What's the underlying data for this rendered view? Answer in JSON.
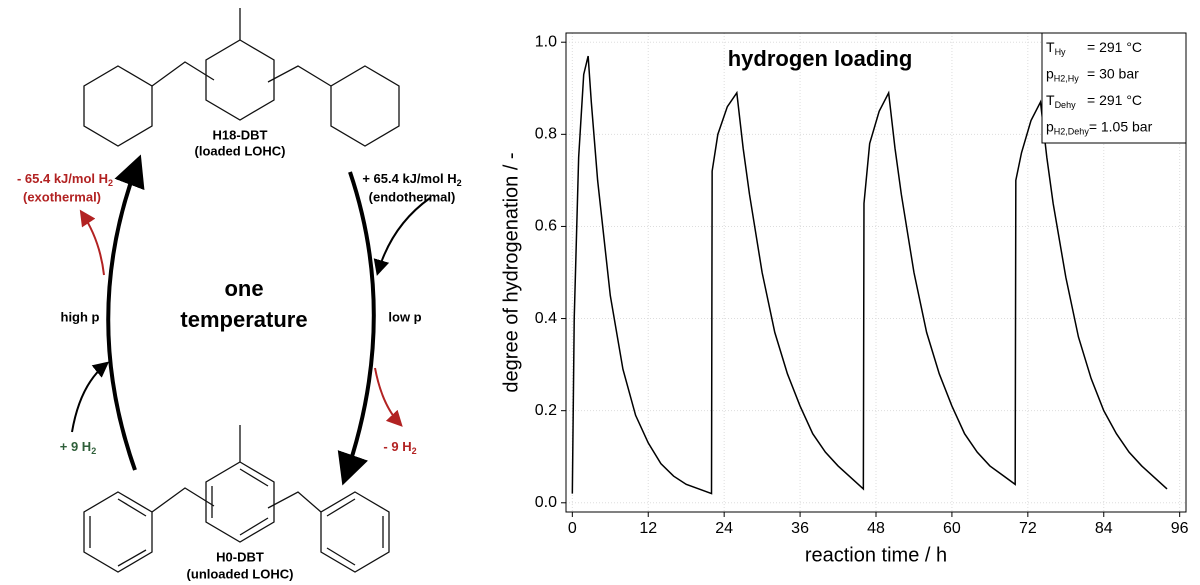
{
  "diagram": {
    "loaded": {
      "name": "H18-DBT",
      "note": "(loaded LOHC)"
    },
    "unloaded": {
      "name": "H0-DBT",
      "note": "(unloaded LOHC)"
    },
    "center": [
      "one",
      "temperature"
    ],
    "left_condition": "high p",
    "right_condition": "low p",
    "exothermic": {
      "main": "- 65.4 kJ/mol H",
      "sub": "2",
      "note": "(exothermal)"
    },
    "endothermic": {
      "main": "+ 65.4 kJ/mol H",
      "sub": "2",
      "note": "(endothermal)"
    },
    "h2_in": {
      "main": "+ 9 H",
      "sub": "2"
    },
    "h2_out": {
      "main": "- 9 H",
      "sub": "2"
    }
  },
  "chart_data": {
    "type": "line",
    "title": "hydrogen loading",
    "x_label": "reaction time / h",
    "y_label": "degree of hydrogenation / -",
    "color": "#000000",
    "x": [
      0,
      0.3,
      1,
      1.8,
      2.5,
      3,
      4,
      6,
      8,
      10,
      12,
      14,
      16,
      18,
      20,
      22,
      22.1,
      23,
      24.5,
      26,
      27,
      28,
      30,
      32,
      34,
      36,
      38,
      40,
      42,
      44,
      46,
      46.1,
      47,
      48.5,
      50,
      51,
      52,
      54,
      56,
      58,
      60,
      62,
      64,
      66,
      68,
      70,
      70.1,
      71,
      72.5,
      74,
      75,
      76,
      78,
      80,
      82,
      84,
      86,
      88,
      90,
      92,
      94
    ],
    "values": [
      0.02,
      0.4,
      0.75,
      0.93,
      0.97,
      0.87,
      0.7,
      0.45,
      0.29,
      0.19,
      0.13,
      0.085,
      0.058,
      0.04,
      0.03,
      0.02,
      0.72,
      0.8,
      0.86,
      0.89,
      0.77,
      0.67,
      0.5,
      0.37,
      0.28,
      0.21,
      0.15,
      0.11,
      0.08,
      0.055,
      0.03,
      0.65,
      0.78,
      0.85,
      0.89,
      0.77,
      0.67,
      0.5,
      0.37,
      0.28,
      0.21,
      0.15,
      0.11,
      0.08,
      0.06,
      0.04,
      0.7,
      0.76,
      0.83,
      0.87,
      0.75,
      0.65,
      0.49,
      0.36,
      0.27,
      0.2,
      0.15,
      0.11,
      0.08,
      0.055,
      0.03
    ],
    "xlim": [
      -1,
      97
    ],
    "ylim": [
      -0.02,
      1.02
    ],
    "xticks": [
      0,
      12,
      24,
      36,
      48,
      60,
      72,
      84,
      96
    ],
    "yticks": [
      {
        "value": 0,
        "label": "0.0"
      },
      0.2,
      0.4,
      0.6,
      0.8,
      {
        "value": 1,
        "label": "1.0"
      }
    ],
    "grid": true,
    "conditions": [
      {
        "main": "T",
        "sub": "Hy",
        "rest": "= 291 °C"
      },
      {
        "main": "p",
        "sub": "H2,Hy",
        "rest": "= 30 bar"
      },
      {
        "main": "T",
        "sub": "Dehy",
        "rest": "= 291 °C"
      },
      {
        "main": "p",
        "sub": "H2,Dehy",
        "rest": "= 1.05 bar"
      }
    ]
  }
}
